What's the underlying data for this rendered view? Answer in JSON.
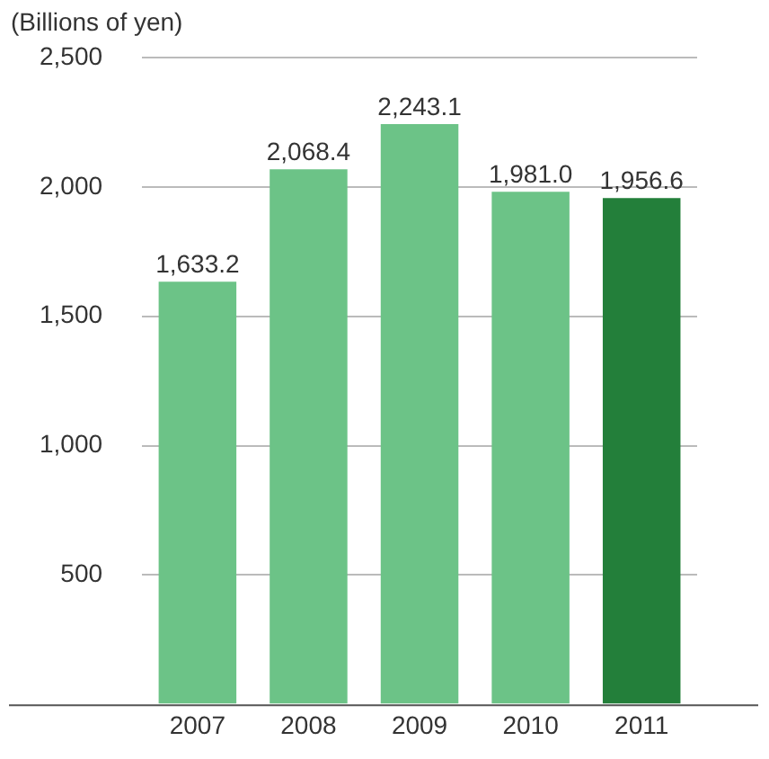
{
  "chart_data": {
    "type": "bar",
    "ylabel": "(Billions of yen)",
    "categories": [
      "2007",
      "2008",
      "2009",
      "2010",
      "2011"
    ],
    "values": [
      1633.2,
      2068.4,
      2243.1,
      1981.0,
      1956.6
    ],
    "colors": [
      "#6cc387",
      "#6cc387",
      "#6cc387",
      "#6cc387",
      "#237f3a"
    ],
    "value_labels": [
      "1,633.2",
      "2,068.4",
      "2,243.1",
      "1,981.0",
      "1,956.6"
    ],
    "ylim": [
      0,
      2500
    ],
    "yticks": [
      {
        "value": 0,
        "label": null
      },
      {
        "value": 500,
        "label": "500"
      },
      {
        "value": 1000,
        "label": "1,000"
      },
      {
        "value": 1500,
        "label": "1,500"
      },
      {
        "value": 2000,
        "label": "2,000"
      },
      {
        "value": 2500,
        "label": "2,500"
      }
    ],
    "grid": "y",
    "legend": false
  }
}
